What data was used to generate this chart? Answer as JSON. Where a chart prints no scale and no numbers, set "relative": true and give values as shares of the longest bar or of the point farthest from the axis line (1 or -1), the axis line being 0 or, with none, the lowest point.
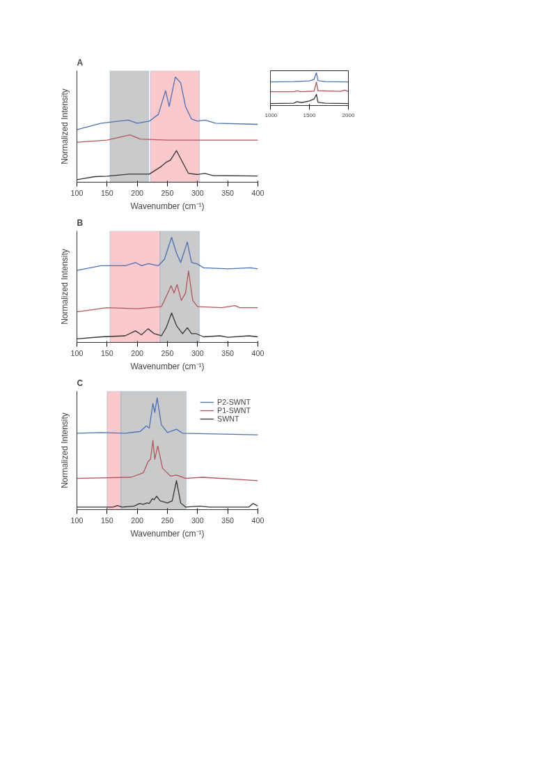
{
  "chart_data": [
    {
      "type": "line",
      "title": "A",
      "xlabel": "Wavenumber (cm⁻¹)",
      "ylabel": "Normalized Intensity",
      "relative": true,
      "xlim": [
        100,
        400
      ],
      "xticks": [
        100,
        150,
        200,
        250,
        300,
        350,
        400
      ],
      "tick_labels": "x",
      "bands": [
        {
          "axis": "x",
          "from": 155,
          "to": 219,
          "color": "#c8cacb"
        },
        {
          "axis": "x",
          "from": 222,
          "to": 303,
          "color": "#f9c9cc"
        }
      ],
      "series": [
        {
          "color": "#4a6fb5",
          "x": [
            100,
            140,
            185,
            200,
            220,
            235,
            247,
            253,
            263,
            272,
            280,
            290,
            300,
            312,
            330,
            400
          ],
          "values": [
            0.5,
            0.56,
            0.59,
            0.56,
            0.58,
            0.645,
            0.87,
            0.72,
            1.0,
            0.945,
            0.72,
            0.6,
            0.58,
            0.59,
            0.56,
            0.55
          ]
        },
        {
          "color": "#b5545c",
          "x": [
            100,
            150,
            188,
            205,
            250,
            400
          ],
          "values": [
            0.38,
            0.4,
            0.45,
            0.41,
            0.4,
            0.4
          ]
        },
        {
          "color": "#333333",
          "x": [
            100,
            130,
            150,
            187,
            220,
            240,
            248,
            255,
            265,
            275,
            285,
            300,
            312,
            325,
            400
          ],
          "values": [
            0.024,
            0.053,
            0.057,
            0.077,
            0.077,
            0.15,
            0.19,
            0.21,
            0.3,
            0.19,
            0.083,
            0.073,
            0.083,
            0.063,
            0.059
          ]
        }
      ]
    },
    {
      "type": "line",
      "relative": true,
      "xlim": [
        1000,
        2000
      ],
      "xticks": [
        1000,
        1500,
        2000
      ],
      "tick_labels": "x",
      "series": [
        {
          "color": "#4a6fb5",
          "x": [
            1000,
            1300,
            1500,
            1560,
            1590,
            1610,
            1700,
            2000
          ],
          "values": [
            0.72,
            0.73,
            0.75,
            0.8,
            1.0,
            0.76,
            0.73,
            0.72
          ]
        },
        {
          "color": "#b5545c",
          "x": [
            1000,
            1300,
            1340,
            1400,
            1560,
            1590,
            1610,
            1900,
            1950,
            2000
          ],
          "values": [
            0.42,
            0.42,
            0.45,
            0.42,
            0.44,
            0.72,
            0.45,
            0.43,
            0.47,
            0.43
          ]
        },
        {
          "color": "#333333",
          "x": [
            1000,
            1300,
            1340,
            1400,
            1500,
            1560,
            1590,
            1610,
            1700,
            2000
          ],
          "values": [
            0.06,
            0.07,
            0.12,
            0.09,
            0.14,
            0.2,
            0.34,
            0.1,
            0.07,
            0.06
          ]
        }
      ]
    },
    {
      "type": "line",
      "title": "B",
      "xlabel": "Wavenumber (cm⁻¹)",
      "ylabel": "Normalized Intensity",
      "relative": true,
      "xlim": [
        100,
        400
      ],
      "xticks": [
        100,
        150,
        200,
        250,
        300,
        350,
        400
      ],
      "tick_labels": "x",
      "bands": [
        {
          "axis": "x",
          "from": 155,
          "to": 238,
          "color": "#f9c9cc"
        },
        {
          "axis": "x",
          "from": 238,
          "to": 303,
          "color": "#c8cacb"
        }
      ],
      "series": [
        {
          "color": "#4a6fb5",
          "x": [
            100,
            140,
            180,
            197,
            207,
            218,
            235,
            245,
            257,
            265,
            272,
            283,
            290,
            298,
            310,
            350,
            388,
            400
          ],
          "values": [
            0.685,
            0.73,
            0.73,
            0.76,
            0.73,
            0.75,
            0.73,
            0.79,
            1.0,
            0.85,
            0.76,
            0.955,
            0.76,
            0.75,
            0.71,
            0.7,
            0.71,
            0.7
          ]
        },
        {
          "color": "#b5545c",
          "x": [
            100,
            150,
            200,
            240,
            250,
            256,
            261,
            266,
            273,
            280,
            285,
            292,
            300,
            340,
            362,
            370,
            400
          ],
          "values": [
            0.29,
            0.33,
            0.32,
            0.34,
            0.46,
            0.54,
            0.47,
            0.55,
            0.4,
            0.47,
            0.68,
            0.4,
            0.34,
            0.33,
            0.35,
            0.33,
            0.33
          ]
        },
        {
          "color": "#333333",
          "x": [
            100,
            140,
            180,
            197,
            207,
            218,
            228,
            240,
            248,
            257,
            265,
            275,
            283,
            290,
            298,
            310,
            337,
            350,
            385,
            400
          ],
          "values": [
            0.034,
            0.053,
            0.063,
            0.11,
            0.073,
            0.13,
            0.083,
            0.063,
            0.14,
            0.28,
            0.16,
            0.083,
            0.14,
            0.083,
            0.083,
            0.053,
            0.063,
            0.049,
            0.063,
            0.053
          ]
        }
      ]
    },
    {
      "type": "line",
      "title": "C",
      "xlabel": "Wavenumber (cm⁻¹)",
      "ylabel": "Normalized Intensity",
      "relative": true,
      "xlim": [
        100,
        400
      ],
      "xticks": [
        100,
        150,
        200,
        250,
        300,
        350,
        400
      ],
      "tick_labels": "x",
      "legend": "top right",
      "bands": [
        {
          "axis": "x",
          "from": 150,
          "to": 173,
          "color": "#f9c9cc"
        },
        {
          "axis": "x",
          "from": 173,
          "to": 281,
          "color": "#c8cacb"
        }
      ],
      "series": [
        {
          "name": "P2-SWNT",
          "color": "#4a6fb5",
          "x": [
            100,
            140,
            180,
            205,
            215,
            220,
            226,
            229,
            233,
            240,
            250,
            265,
            275,
            400
          ],
          "values": [
            0.684,
            0.69,
            0.684,
            0.7,
            0.75,
            0.73,
            0.95,
            0.87,
            1.0,
            0.76,
            0.69,
            0.72,
            0.684,
            0.67
          ]
        },
        {
          "name": "P1-SWNT",
          "color": "#b5545c",
          "x": [
            100,
            190,
            210,
            218,
            222,
            226,
            229,
            234,
            242,
            255,
            265,
            280,
            308,
            400
          ],
          "values": [
            0.28,
            0.29,
            0.33,
            0.43,
            0.45,
            0.62,
            0.45,
            0.57,
            0.37,
            0.3,
            0.31,
            0.28,
            0.29,
            0.26
          ]
        },
        {
          "name": "SWNT",
          "color": "#333333",
          "x": [
            100,
            160,
            167,
            175,
            195,
            204,
            210,
            216,
            220,
            225,
            228,
            232,
            238,
            250,
            258,
            265,
            272,
            280,
            303,
            320,
            385,
            392,
            400
          ],
          "values": [
            0.023,
            0.023,
            0.036,
            0.023,
            0.032,
            0.055,
            0.047,
            0.06,
            0.055,
            0.098,
            0.089,
            0.12,
            0.079,
            0.06,
            0.079,
            0.26,
            0.06,
            0.023,
            0.032,
            0.023,
            0.023,
            0.055,
            0.032
          ]
        }
      ]
    }
  ]
}
